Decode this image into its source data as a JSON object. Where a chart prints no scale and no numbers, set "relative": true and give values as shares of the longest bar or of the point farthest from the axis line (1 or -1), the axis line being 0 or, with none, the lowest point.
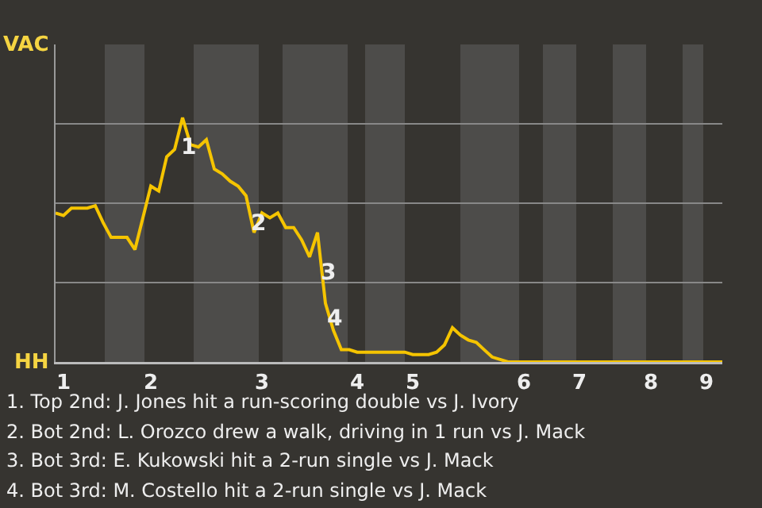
{
  "chart_data": {
    "type": "line",
    "relative": true,
    "categories": [
      null,
      "1",
      null,
      null,
      null,
      null,
      null,
      null,
      null,
      null,
      null,
      null,
      "2",
      null,
      null,
      null,
      null,
      null,
      null,
      null,
      null,
      null,
      null,
      null,
      null,
      null,
      "3",
      null,
      null,
      null,
      null,
      null,
      null,
      null,
      null,
      null,
      null,
      null,
      "4",
      null,
      null,
      null,
      null,
      null,
      null,
      "5",
      null,
      null,
      null,
      null,
      null,
      null,
      null,
      null,
      null,
      null,
      null,
      null,
      null,
      "6",
      null,
      null,
      null,
      null,
      null,
      null,
      "7",
      null,
      null,
      null,
      null,
      null,
      null,
      null,
      null,
      "8",
      null,
      null,
      null,
      null,
      null,
      null,
      "9",
      null,
      null
    ],
    "series": [
      {
        "color": "#f5c400",
        "values": [
          0.61,
          0.6,
          0.63,
          0.63,
          0.63,
          0.64,
          0.57,
          0.51,
          0.51,
          0.51,
          0.46,
          0.59,
          0.72,
          0.7,
          0.84,
          0.87,
          1,
          0.89,
          0.88,
          0.91,
          0.79,
          0.77,
          0.74,
          0.72,
          0.68,
          0.53,
          0.61,
          0.59,
          0.61,
          0.55,
          0.55,
          0.5,
          0.43,
          0.53,
          0.24,
          0.13,
          0.05,
          0.05,
          0.04,
          0.04,
          0.04,
          0.04,
          0.04,
          0.04,
          0.04,
          0.03,
          0.03,
          0.03,
          0.04,
          0.07,
          0.14,
          0.11,
          0.09,
          0.08,
          0.05,
          0.02,
          0.01,
          0,
          0,
          0,
          0,
          0,
          0,
          0,
          0,
          0,
          0,
          0,
          0,
          0,
          0,
          0,
          0,
          0,
          0,
          0,
          0,
          0,
          0,
          0,
          0,
          0,
          0,
          0,
          0
        ]
      }
    ],
    "grid": "y",
    "marker": "none",
    "line_style": "solid",
    "annotations": [
      "VAC",
      "HH",
      "1",
      "2",
      "3",
      "4",
      "1. Top 2nd: J. Jones hit a run-scoring double vs J. Ivory",
      "2. Bot 2nd: L. Orozco drew a walk, driving in 1 run vs J. Mack",
      "3. Bot 3rd: E. Kukowski hit a 2-run single vs J. Mack",
      "4. Bot 3rd: M. Costello hit a 2-run single vs J. Mack"
    ]
  }
}
